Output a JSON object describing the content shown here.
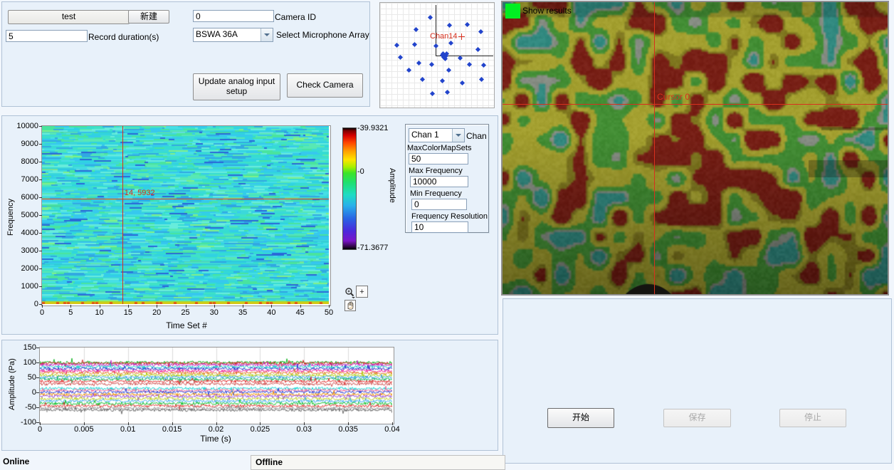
{
  "controls": {
    "session_name": "test",
    "new_button": "新建",
    "camera_id": {
      "value": "0",
      "label": "Camera ID"
    },
    "record_duration": {
      "value": "5",
      "label": "Record duration(s)"
    },
    "mic_array": {
      "value": "BSWA 36A",
      "label": "Select Microphone Array"
    },
    "update_button": "Update analog input setup",
    "check_camera_button": "Check Camera"
  },
  "spectro_controls": {
    "chan_value": "Chan 1",
    "chan_label": "Chan",
    "fields": [
      {
        "label": "MaxColorMapSets",
        "value": "50"
      },
      {
        "label": "Max Frequency",
        "value": "10000"
      },
      {
        "label": "Min Frequency",
        "value": "0"
      },
      {
        "label": "Frequency Resolution",
        "value": "10"
      }
    ]
  },
  "camera": {
    "checkbox_label": "Show results",
    "cursor_label": "Cursor 0",
    "led_color": "#00ee22",
    "crosshair_color": "#d8301e"
  },
  "actions": {
    "start": "开始",
    "save": "保存",
    "stop": "停止"
  },
  "status": {
    "left": "Online",
    "right": "Offline"
  },
  "chart_data": [
    {
      "id": "spectrogram",
      "type": "heatmap",
      "xlabel": "Time Set #",
      "ylabel": "Frequency",
      "xlim": [
        0,
        50
      ],
      "ylim": [
        0,
        10000
      ],
      "xticks": [
        "0",
        "5",
        "10",
        "15",
        "20",
        "25",
        "30",
        "35",
        "40",
        "45",
        "50"
      ],
      "yticks": [
        "10000",
        "9000",
        "8000",
        "7000",
        "6000",
        "5000",
        "4000",
        "3000",
        "2000",
        "1000",
        "0"
      ],
      "cursor": {
        "x": 14,
        "y": 5932,
        "label": "14, 5932"
      },
      "colorbar": {
        "label": "Amplitude",
        "max_label": "-39.9321",
        "mid_label": "-0",
        "min_label": "-71.3677"
      },
      "base_color": "#3bdcd2",
      "legend": "off",
      "grid": "off"
    },
    {
      "id": "waveform",
      "type": "line",
      "xlabel": "Time (s)",
      "ylabel": "Amplitude (Pa)",
      "xlim": [
        0,
        0.04
      ],
      "ylim": [
        -100,
        150
      ],
      "xticks": [
        "0",
        "0.005",
        "0.01",
        "0.015",
        "0.02",
        "0.025",
        "0.03",
        "0.035",
        "0.04"
      ],
      "yticks": [
        "150",
        "100",
        "50",
        "0",
        "-50",
        "-100"
      ],
      "grid": "vertical",
      "series": [
        {
          "color": "#00b014",
          "offset": 100
        },
        {
          "color": "#d01818",
          "offset": 97
        },
        {
          "color": "#c018c0",
          "offset": 92
        },
        {
          "color": "#00c8c8",
          "offset": 85
        },
        {
          "color": "#2222cc",
          "offset": 79
        },
        {
          "color": "#ee1493",
          "offset": 72
        },
        {
          "color": "#e07818",
          "offset": 65
        },
        {
          "color": "#aacc00",
          "offset": 57
        },
        {
          "color": "#2e9ce8",
          "offset": 51
        },
        {
          "color": "#00b454",
          "offset": 44
        },
        {
          "color": "#e02020",
          "offset": 37
        },
        {
          "color": "#cc4444",
          "offset": 28
        },
        {
          "color": "#00d2d2",
          "offset": 13
        },
        {
          "color": "#f06090",
          "offset": 7
        },
        {
          "color": "#2038d8",
          "offset": 1
        },
        {
          "color": "#ef9000",
          "offset": -7
        },
        {
          "color": "#9040dd",
          "offset": -13
        },
        {
          "color": "#bccc20",
          "offset": -21
        },
        {
          "color": "#38a8ee",
          "offset": -29
        },
        {
          "color": "#00bc20",
          "offset": -37
        },
        {
          "color": "#dd2828",
          "offset": -45
        },
        {
          "color": "#8f8f8f",
          "offset": -53
        },
        {
          "color": "#5f5f5f",
          "offset": -59
        }
      ]
    },
    {
      "id": "mic-array-layout",
      "type": "scatter",
      "cursor_label": "Chan14",
      "dot_color": "#2244cc",
      "points": [
        [
          70,
          20
        ],
        [
          97,
          31
        ],
        [
          122,
          30
        ],
        [
          141,
          40
        ],
        [
          50,
          37
        ],
        [
          99,
          56
        ],
        [
          23,
          59
        ],
        [
          48,
          58
        ],
        [
          78,
          60
        ],
        [
          137,
          65
        ],
        [
          28,
          76
        ],
        [
          54,
          84
        ],
        [
          40,
          94
        ],
        [
          72,
          86
        ],
        [
          112,
          77
        ],
        [
          125,
          86
        ],
        [
          145,
          87
        ],
        [
          96,
          94
        ],
        [
          59,
          107
        ],
        [
          87,
          109
        ],
        [
          115,
          112
        ],
        [
          142,
          107
        ],
        [
          73,
          127
        ],
        [
          94,
          125
        ]
      ],
      "cluster": [
        [
          87,
          73
        ],
        [
          92,
          74
        ],
        [
          89,
          76
        ],
        [
          91,
          78
        ],
        [
          88,
          71
        ],
        [
          93,
          71
        ],
        [
          90,
          74
        ]
      ],
      "cursor_point": [
        114,
        48
      ]
    }
  ]
}
